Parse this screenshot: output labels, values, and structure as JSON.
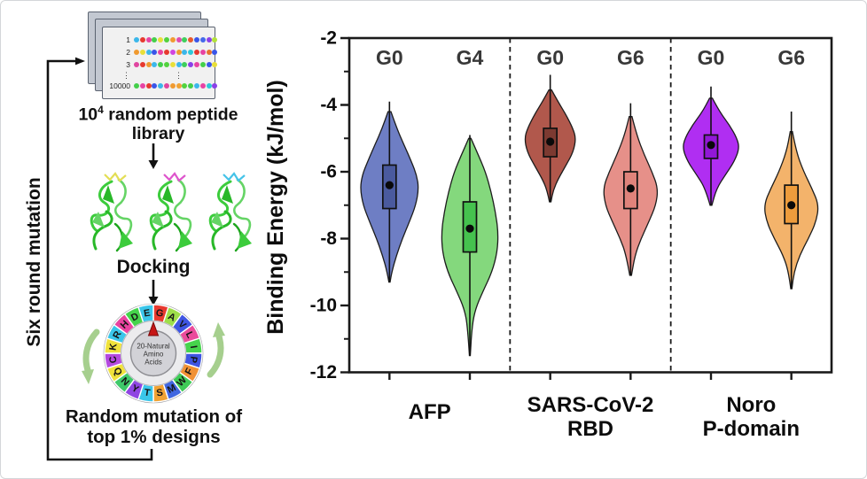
{
  "workflow": {
    "loop_label": "Six round mutation",
    "library_card": {
      "ellipsis": "⋮",
      "rows": [
        {
          "label": "1",
          "dots": [
            "#3bb7ea",
            "#e6392f",
            "#e743a3",
            "#43cf4a",
            "#e8df3a",
            "#52d23e",
            "#f09a30",
            "#e04cae",
            "#3ecf5c",
            "#e85a2e",
            "#3a55e8",
            "#4468ea",
            "#8a40e8",
            "#b4e23a"
          ]
        },
        {
          "label": "2",
          "dots": [
            "#f09a30",
            "#e8df3a",
            "#3bb7ea",
            "#3a55e8",
            "#e743a3",
            "#e6392f",
            "#d145e0",
            "#f09a30",
            "#3bb7ea",
            "#2ec9d8",
            "#e6392f",
            "#e743a3",
            "#e8702e",
            "#3a55e8"
          ]
        },
        {
          "label": "3",
          "dots": [
            "#e045a0",
            "#e6392f",
            "#f09a30",
            "#3bb7ea",
            "#43cf4a",
            "#52d23e",
            "#e8df3a",
            "#3bb7ea",
            "#3ecf5c",
            "#8a40e8",
            "#e743a3",
            "#43cf4a",
            "#3a55e8",
            "#e8df3a"
          ]
        },
        {
          "label": "10000",
          "dots": [
            "#43cf4a",
            "#e743a3",
            "#e6392f",
            "#3a55e8",
            "#3bb7ea",
            "#e045a0",
            "#f09a30",
            "#f0a233",
            "#52d23e",
            "#43cf4a",
            "#3bb7ea",
            "#e743a3",
            "#2ec9d8",
            "#8a40e8"
          ]
        }
      ]
    },
    "library_caption": {
      "base": "10",
      "sup": "4",
      "rest": " random peptide",
      "line2": "library"
    },
    "docking_label": "Docking",
    "ligand_colors": [
      "#e3de55",
      "#de55cc",
      "#45c3e8"
    ],
    "wheel": {
      "center_lines": [
        "20-Natural",
        "Amino",
        "Acids"
      ],
      "pointer_color": "#c61616",
      "arrow_color": "#a6cf8e",
      "segments": [
        {
          "letter": "G",
          "color": "#e8392f"
        },
        {
          "letter": "A",
          "color": "#9ede4a"
        },
        {
          "letter": "V",
          "color": "#3f55e2"
        },
        {
          "letter": "L",
          "color": "#ea4b9b"
        },
        {
          "letter": "I",
          "color": "#46d44c"
        },
        {
          "letter": "P",
          "color": "#3f55e2"
        },
        {
          "letter": "F",
          "color": "#f09134"
        },
        {
          "letter": "W",
          "color": "#3fcb57"
        },
        {
          "letter": "M",
          "color": "#4067e0"
        },
        {
          "letter": "S",
          "color": "#f0a233"
        },
        {
          "letter": "T",
          "color": "#3ac6ea"
        },
        {
          "letter": "Y",
          "color": "#8f46e2"
        },
        {
          "letter": "N",
          "color": "#3fc96a"
        },
        {
          "letter": "Q",
          "color": "#f0e23c"
        },
        {
          "letter": "C",
          "color": "#b44ae0"
        },
        {
          "letter": "K",
          "color": "#f0e23c"
        },
        {
          "letter": "R",
          "color": "#3ac6ea"
        },
        {
          "letter": "H",
          "color": "#ea43a0"
        },
        {
          "letter": "D",
          "color": "#46d44c"
        },
        {
          "letter": "E",
          "color": "#3ac6ea"
        }
      ]
    },
    "mutation_caption": [
      "Random mutation of",
      "top 1% designs"
    ]
  },
  "chart_data": {
    "type": "violin",
    "title": "",
    "ylabel": "Binding Energy (kJ/mol)",
    "ylim": [
      -12,
      -2
    ],
    "yticks": [
      -2,
      -4,
      -6,
      -8,
      -10,
      -12
    ],
    "yticks_minor": [
      -3,
      -5,
      -7,
      -9,
      -11
    ],
    "grid": false,
    "legend_position": "none",
    "groups": [
      {
        "label_lines": [
          "AFP"
        ],
        "series": [
          0,
          1
        ]
      },
      {
        "label_lines": [
          "SARS-CoV-2",
          "RBD"
        ],
        "series": [
          2,
          3
        ]
      },
      {
        "label_lines": [
          "Noro",
          "P-domain"
        ],
        "series": [
          4,
          5
        ]
      }
    ],
    "series": [
      {
        "name": "AFP G0",
        "generation": "G0",
        "fill": "#6e7ec4",
        "box_fill": "#4a5a9e",
        "whisker_top": -3.9,
        "whisker_bottom": -9.3,
        "q1": -7.1,
        "q3": -5.8,
        "mean": -6.4,
        "max_halfwidth": 33,
        "profile": [
          [
            -4.2,
            0.05
          ],
          [
            -4.7,
            0.25
          ],
          [
            -5.2,
            0.5
          ],
          [
            -5.7,
            0.75
          ],
          [
            -6.1,
            0.93
          ],
          [
            -6.5,
            1.0
          ],
          [
            -7.0,
            0.9
          ],
          [
            -7.5,
            0.68
          ],
          [
            -8.0,
            0.44
          ],
          [
            -8.5,
            0.24
          ],
          [
            -9.0,
            0.08
          ],
          [
            -9.3,
            0.02
          ]
        ]
      },
      {
        "name": "AFP G4",
        "generation": "G4",
        "fill": "#84d87d",
        "box_fill": "#45c24e",
        "whisker_top": -4.9,
        "whisker_bottom": -11.5,
        "q1": -8.4,
        "q3": -6.9,
        "mean": -7.7,
        "max_halfwidth": 32,
        "profile": [
          [
            -5.0,
            0.04
          ],
          [
            -5.5,
            0.3
          ],
          [
            -6.0,
            0.55
          ],
          [
            -6.6,
            0.75
          ],
          [
            -7.2,
            0.9
          ],
          [
            -7.8,
            1.0
          ],
          [
            -8.4,
            0.97
          ],
          [
            -9.0,
            0.78
          ],
          [
            -9.6,
            0.45
          ],
          [
            -10.1,
            0.2
          ],
          [
            -10.6,
            0.08
          ],
          [
            -11.5,
            0.015
          ]
        ]
      },
      {
        "name": "SARS-CoV-2 RBD G0",
        "generation": "G0",
        "fill": "#b1584c",
        "box_fill": "#7c3a31",
        "whisker_top": -3.1,
        "whisker_bottom": -6.9,
        "q1": -5.55,
        "q3": -4.7,
        "mean": -5.1,
        "max_halfwidth": 29,
        "profile": [
          [
            -3.55,
            0.05
          ],
          [
            -3.9,
            0.3
          ],
          [
            -4.3,
            0.62
          ],
          [
            -4.7,
            0.88
          ],
          [
            -5.0,
            1.0
          ],
          [
            -5.4,
            0.9
          ],
          [
            -5.8,
            0.62
          ],
          [
            -6.2,
            0.32
          ],
          [
            -6.55,
            0.12
          ],
          [
            -6.9,
            0.03
          ]
        ]
      },
      {
        "name": "SARS-CoV-2 RBD G6",
        "generation": "G6",
        "fill": "#e69089",
        "box_fill": "#e0837b",
        "whisker_top": -3.95,
        "whisker_bottom": -9.1,
        "q1": -7.1,
        "q3": -6.0,
        "mean": -6.5,
        "max_halfwidth": 31,
        "profile": [
          [
            -4.35,
            0.05
          ],
          [
            -4.9,
            0.22
          ],
          [
            -5.5,
            0.5
          ],
          [
            -6.0,
            0.78
          ],
          [
            -6.5,
            1.0
          ],
          [
            -7.0,
            0.92
          ],
          [
            -7.5,
            0.66
          ],
          [
            -8.0,
            0.38
          ],
          [
            -8.5,
            0.16
          ],
          [
            -9.1,
            0.03
          ]
        ]
      },
      {
        "name": "Noro P-domain G0",
        "generation": "G0",
        "fill": "#b02ef2",
        "box_fill": "#9218d6",
        "whisker_top": -3.45,
        "whisker_bottom": -7.0,
        "q1": -5.6,
        "q3": -4.9,
        "mean": -5.2,
        "max_halfwidth": 32,
        "profile": [
          [
            -3.8,
            0.05
          ],
          [
            -4.2,
            0.3
          ],
          [
            -4.6,
            0.65
          ],
          [
            -5.0,
            0.92
          ],
          [
            -5.3,
            1.0
          ],
          [
            -5.7,
            0.82
          ],
          [
            -6.1,
            0.5
          ],
          [
            -6.5,
            0.2
          ],
          [
            -7.0,
            0.03
          ]
        ]
      },
      {
        "name": "Noro P-domain G6",
        "generation": "G6",
        "fill": "#f3b36b",
        "box_fill": "#ee9c3c",
        "whisker_top": -4.2,
        "whisker_bottom": -9.5,
        "q1": -7.55,
        "q3": -6.4,
        "mean": -7.0,
        "max_halfwidth": 31,
        "profile": [
          [
            -4.8,
            0.04
          ],
          [
            -5.4,
            0.18
          ],
          [
            -6.0,
            0.45
          ],
          [
            -6.5,
            0.75
          ],
          [
            -7.0,
            1.0
          ],
          [
            -7.5,
            0.9
          ],
          [
            -8.0,
            0.62
          ],
          [
            -8.5,
            0.3
          ],
          [
            -9.0,
            0.1
          ],
          [
            -9.5,
            0.02
          ]
        ]
      }
    ]
  }
}
